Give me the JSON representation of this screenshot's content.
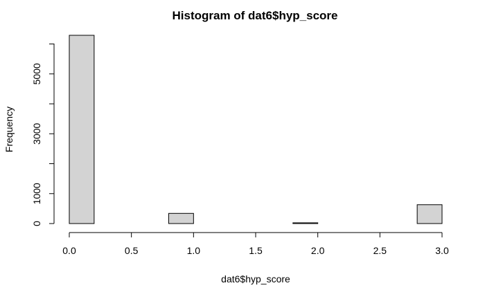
{
  "chart_data": {
    "type": "bar",
    "title": "Histogram of dat6$hyp_score",
    "xlabel": "dat6$hyp_score",
    "ylabel": "Frequency",
    "bin_width": 0.2,
    "bins": [
      {
        "x0": 0.0,
        "x1": 0.2,
        "count": 6290
      },
      {
        "x0": 0.2,
        "x1": 0.4,
        "count": 0
      },
      {
        "x0": 0.4,
        "x1": 0.6,
        "count": 0
      },
      {
        "x0": 0.6,
        "x1": 0.8,
        "count": 0
      },
      {
        "x0": 0.8,
        "x1": 1.0,
        "count": 340
      },
      {
        "x0": 1.0,
        "x1": 1.2,
        "count": 0
      },
      {
        "x0": 1.2,
        "x1": 1.4,
        "count": 0
      },
      {
        "x0": 1.4,
        "x1": 1.6,
        "count": 0
      },
      {
        "x0": 1.6,
        "x1": 1.8,
        "count": 0
      },
      {
        "x0": 1.8,
        "x1": 2.0,
        "count": 25
      },
      {
        "x0": 2.0,
        "x1": 2.2,
        "count": 0
      },
      {
        "x0": 2.2,
        "x1": 2.4,
        "count": 0
      },
      {
        "x0": 2.4,
        "x1": 2.6,
        "count": 0
      },
      {
        "x0": 2.6,
        "x1": 2.8,
        "count": 0
      },
      {
        "x0": 2.8,
        "x1": 3.0,
        "count": 630
      }
    ],
    "xlim": [
      0,
      3
    ],
    "ylim": [
      0,
      6290
    ],
    "x_ticks": [
      0.0,
      0.5,
      1.0,
      1.5,
      2.0,
      2.5,
      3.0
    ],
    "x_tick_labels": [
      "0.0",
      "0.5",
      "1.0",
      "1.5",
      "2.0",
      "2.5",
      "3.0"
    ],
    "y_ticks": [
      0,
      1000,
      2000,
      3000,
      4000,
      5000,
      6000
    ],
    "y_tick_labels": [
      "0",
      "1000",
      "",
      "3000",
      "",
      "5000",
      ""
    ],
    "grid": false,
    "legend": "none"
  }
}
